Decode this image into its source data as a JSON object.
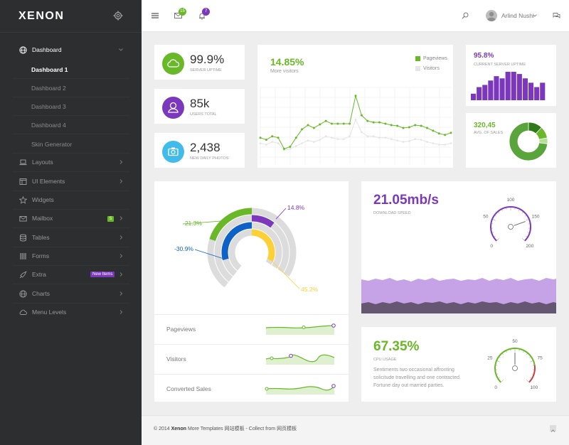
{
  "app": {
    "logo": "XENON"
  },
  "sidebar": {
    "items": [
      {
        "label": "Dashboard",
        "icon": "globe-icon"
      },
      {
        "label": "Layouts",
        "icon": "laptop-icon"
      },
      {
        "label": "UI Elements",
        "icon": "window-icon"
      },
      {
        "label": "Widgets",
        "icon": "star-icon"
      },
      {
        "label": "Mailbox",
        "icon": "mail-icon",
        "badge": "5"
      },
      {
        "label": "Tables",
        "icon": "database-icon"
      },
      {
        "label": "Forms",
        "icon": "columns-icon"
      },
      {
        "label": "Extra",
        "icon": "rocket-icon",
        "badge": "New Items"
      },
      {
        "label": "Charts",
        "icon": "globe-icon"
      },
      {
        "label": "Menu Levels",
        "icon": "cloud-icon"
      }
    ],
    "sub_items": [
      "Dashboard 1",
      "Dashboard 2",
      "Dashboard 3",
      "Dashboard 4",
      "Skin Generator"
    ]
  },
  "topbar": {
    "messages_count": "15",
    "notifications_count": "7",
    "user_name": "Arlind Nushi"
  },
  "tiles": [
    {
      "value": "99.9%",
      "label": "SERVER UPTIME",
      "color": "#68b828",
      "icon": "cloud-icon"
    },
    {
      "value": "85k",
      "label": "USERS TOTAL",
      "color": "#7c38bc",
      "icon": "user-icon"
    },
    {
      "value": "2,438",
      "label": "NEW DAILY PHOTOS",
      "color": "#40bbea",
      "icon": "camera-icon"
    }
  ],
  "visitors_chart": {
    "headline": "14.85%",
    "subtitle": "More visitors",
    "legend": [
      "Pageviews",
      "Visitors"
    ],
    "pageviews": [
      38,
      35,
      40,
      38,
      22,
      25,
      38,
      50,
      56,
      52,
      57,
      62,
      58,
      58,
      58,
      58,
      98,
      70,
      62,
      60,
      60,
      58,
      56,
      55,
      52,
      53,
      56,
      55,
      52,
      48,
      44,
      42,
      45
    ],
    "visitors": [
      30,
      28,
      32,
      30,
      20,
      22,
      26,
      30,
      34,
      32,
      35,
      40,
      38,
      36,
      36,
      40,
      64,
      46,
      40,
      40,
      38,
      38,
      36,
      34,
      32,
      33,
      36,
      35,
      32,
      30,
      28,
      28,
      30
    ]
  },
  "uptime_panel": {
    "headline": "95.8%",
    "label": "CURRENT SERVER UPTIME",
    "bars": [
      3,
      6,
      7,
      9,
      11,
      10,
      13,
      13,
      12,
      10,
      8,
      6,
      8
    ]
  },
  "sales_panel": {
    "headline": "320,45",
    "label": "AVG. OF SALES",
    "slices": [
      12,
      10,
      5,
      73
    ]
  },
  "radial_chart": {
    "labels": [
      "-21.3%",
      "14.8%",
      "-30.9%",
      "45.2%"
    ],
    "values": [
      -21.3,
      14.8,
      -30.9,
      45.2
    ],
    "colors": [
      "#68b828",
      "#7c38bc",
      "#0e62c7",
      "#fcd036"
    ]
  },
  "spark_rows": [
    {
      "label": "Pageviews"
    },
    {
      "label": "Visitors"
    },
    {
      "label": "Converted Sales"
    }
  ],
  "download_panel": {
    "headline": "21.05mb/s",
    "label": "DOWNLOAD SPEED",
    "gauge_ticks": [
      "0",
      "50",
      "100",
      "150",
      "200"
    ]
  },
  "cpu_panel": {
    "headline": "67.35%",
    "label": "CPU USAGE",
    "text": "Sentiments two occasional affronting solicitude travelling and one contracted. Fortune day out married parties.",
    "gauge_ticks": [
      "0",
      "25",
      "50",
      "75",
      "100"
    ]
  },
  "footer": {
    "prefix": "© 2014 ",
    "brand": "Xenon",
    "rest": " More Templates 网站模板 - Collect from 网页模板"
  }
}
